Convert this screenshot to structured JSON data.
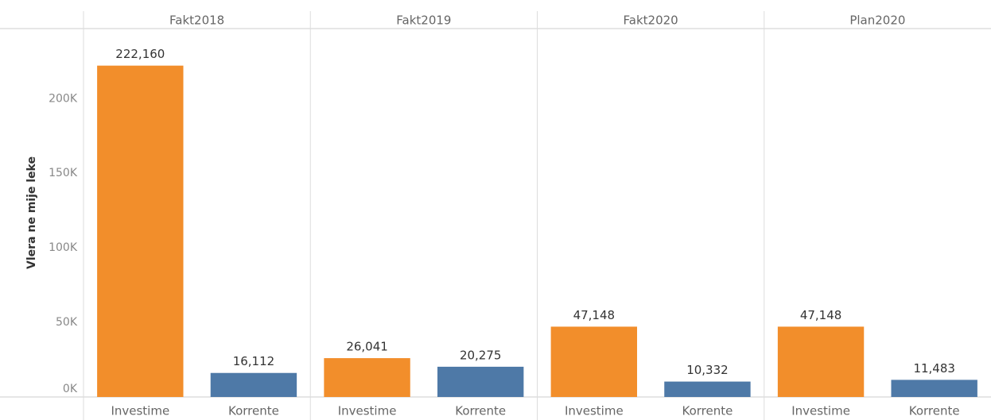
{
  "chart_data": {
    "type": "bar",
    "y_label": "Vlera ne mije leke",
    "categories": [
      "Investime",
      "Korrente"
    ],
    "colors": [
      "#f28e2b",
      "#4e79a7"
    ],
    "panels": [
      {
        "name": "Fakt2018",
        "values": [
          222160,
          16112
        ],
        "value_labels": [
          "222,160",
          "16,112"
        ]
      },
      {
        "name": "Fakt2019",
        "values": [
          26041,
          20275
        ],
        "value_labels": [
          "26,041",
          "20,275"
        ]
      },
      {
        "name": "Fakt2020",
        "values": [
          47148,
          10332
        ],
        "value_labels": [
          "47,148",
          "10,332"
        ]
      },
      {
        "name": "Plan2020",
        "values": [
          47148,
          11483
        ],
        "value_labels": [
          "47,148",
          "11,483"
        ]
      }
    ],
    "ylim": [
      0,
      247000
    ],
    "yticks": [
      {
        "value": 0,
        "label": "0K"
      },
      {
        "value": 50000,
        "label": "50K"
      },
      {
        "value": 100000,
        "label": "100K"
      },
      {
        "value": 150000,
        "label": "150K"
      },
      {
        "value": 200000,
        "label": "200K"
      }
    ],
    "grid": false
  }
}
